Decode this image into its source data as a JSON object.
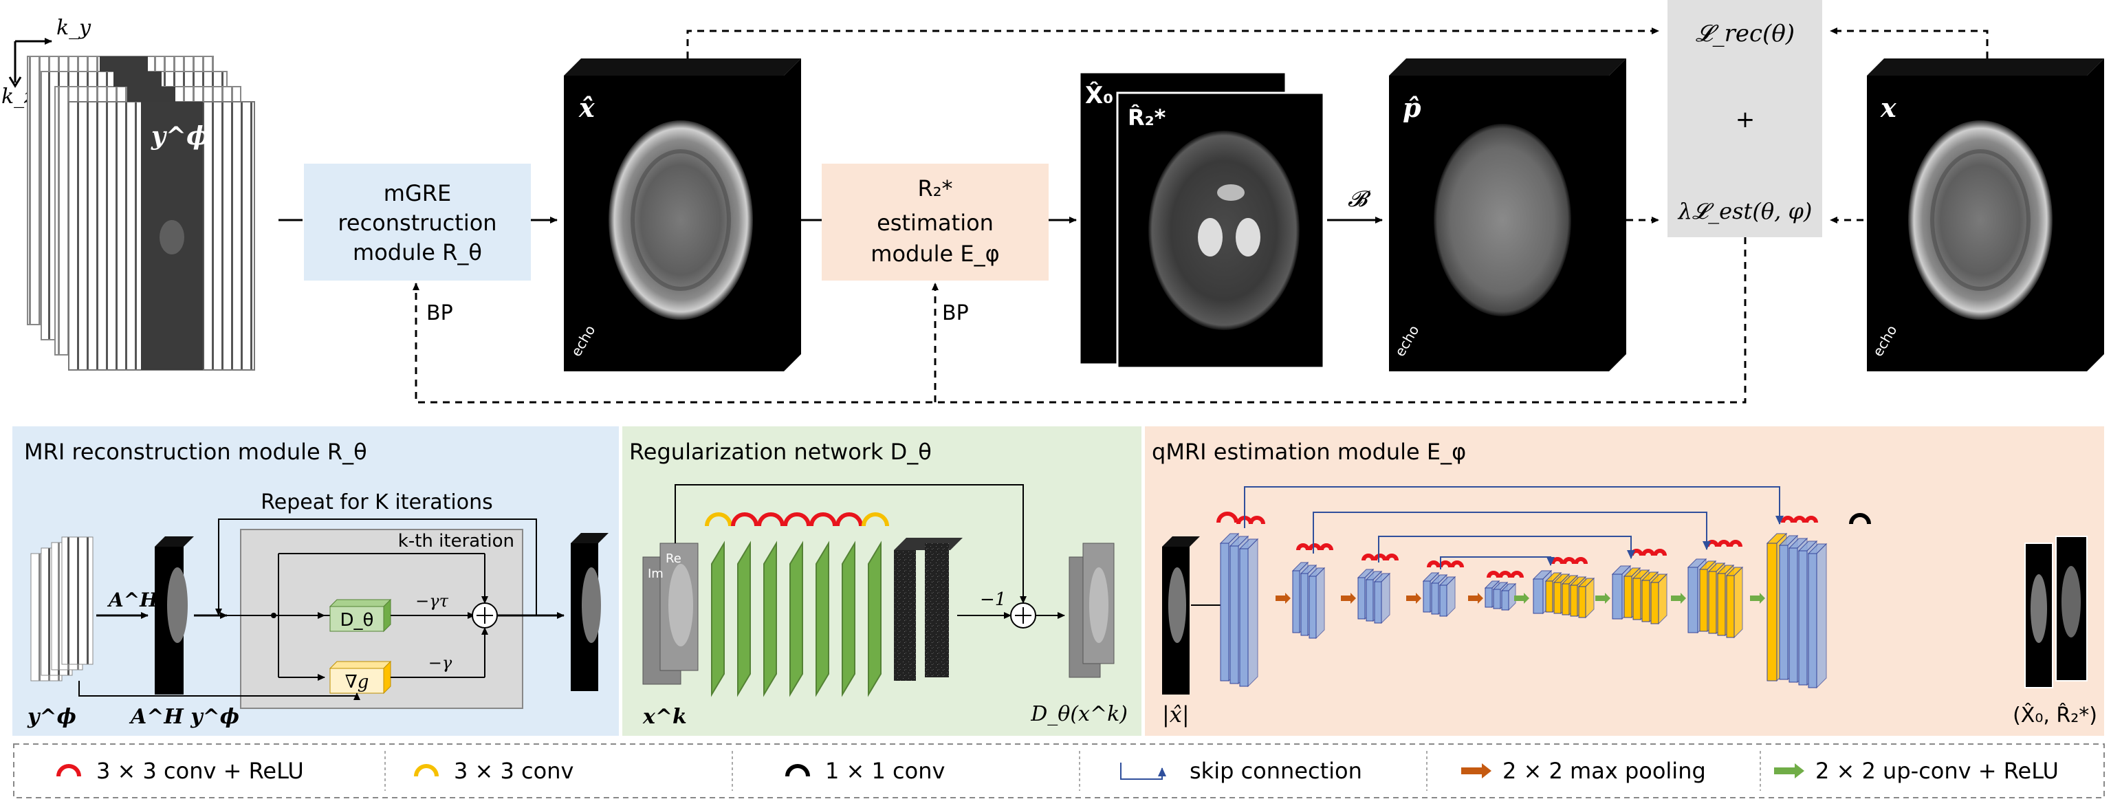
{
  "top": {
    "ky_label": "k_y",
    "kz_label": "k_z",
    "y_phi_label": "y^ϕ",
    "recon_module": {
      "line1": "mGRE",
      "line2": "reconstruction",
      "line3": "module R_θ"
    },
    "x_hat_label": "x̂",
    "r2_module": {
      "line1": "R₂*",
      "line2": "estimation",
      "line3": "module E_φ"
    },
    "X0_label": "X̂₀",
    "R2_label": "R̂₂*",
    "B_label": "𝓑",
    "p_hat_label": "p̂",
    "loss_rec": "𝓛_rec(θ)",
    "loss_plus": "+",
    "loss_est": "λ𝓛_est(θ, φ)",
    "x_label": "x",
    "echo_label": "echo",
    "bp_label": "BP"
  },
  "panel_recon": {
    "title": "MRI reconstruction module R_θ",
    "repeat_label": "Repeat for K iterations",
    "kth_label": "k-th iteration",
    "AH_label": "A^H",
    "AHy_label": "A^H y^ϕ",
    "y_label": "y^ϕ",
    "D_label": "D_θ",
    "grad_label": "∇g",
    "gamma_tau_label": "−γτ",
    "gamma_label": "−γ"
  },
  "panel_reg": {
    "title": "Regularization network D_θ",
    "minus_one": "−1",
    "xk_label": "x^k",
    "out_label": "D_θ(x^k)",
    "im_label": "Im",
    "re_label": "Re"
  },
  "panel_qmri": {
    "title": "qMRI estimation module E_φ",
    "in_label": "|x̂|",
    "out_label": "(X̂₀, R̂₂*)"
  },
  "legend": [
    {
      "label": "3 × 3 conv + ReLU",
      "icon": "red-arc",
      "color": "#e8141c"
    },
    {
      "label": "3 × 3 conv",
      "icon": "yellow-arc",
      "color": "#f6c000"
    },
    {
      "label": "1 × 1 conv",
      "icon": "black-arc",
      "color": "#000000"
    },
    {
      "label": "skip connection",
      "icon": "skip-arrow",
      "color": "#2f4f9c"
    },
    {
      "label": "2 × 2 max pooling",
      "icon": "orange-arrow",
      "color": "#c55a11"
    },
    {
      "label": "2 × 2 up-conv + ReLU",
      "icon": "green-arrow",
      "color": "#70ad47"
    }
  ],
  "colors": {
    "recon_bg": "#deebf7",
    "reg_bg": "#e2efda",
    "qmri_bg": "#fbe5d6",
    "loss_bg": "#e0e0e0",
    "layer_blue": "#8faadc",
    "layer_yellow": "#ffc000",
    "layer_green": "#70ad47"
  }
}
